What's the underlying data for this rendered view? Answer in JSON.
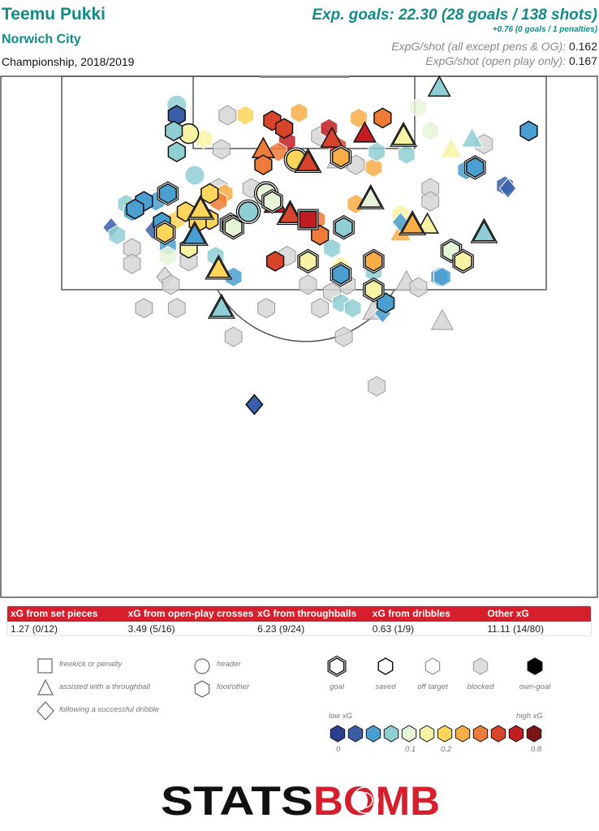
{
  "header": {
    "player": "Teemu Pukki",
    "team": "Norwich City",
    "competition": "Championship, 2018/2019",
    "xg_main": "Exp. goals: 22.30 (28 goals / 138 shots)",
    "xg_sub": "+0.76 (0 goals / 1 penalties)",
    "xg_per_shot_all_label": "ExpG/shot (all except pens & OG):",
    "xg_per_shot_all_value": "0.162",
    "xg_per_shot_open_label": "ExpG/shot (open play only):",
    "xg_per_shot_open_value": "0.167"
  },
  "colors": {
    "accent": "#138a8a",
    "stats_header": "#d61f2c",
    "scale": [
      "#2a3f8f",
      "#3a5fa8",
      "#4a9fd0",
      "#8fcfd3",
      "#e6f5d8",
      "#f7f3a4",
      "#fcd55a",
      "#f8ad46",
      "#ef7b38",
      "#d8442b",
      "#c11d22",
      "#7d1414"
    ]
  },
  "stats": {
    "headers": [
      "xG from set pieces",
      "xG from open-play crosses",
      "xG from throughballs",
      "xG from dribbles",
      "Other xG"
    ],
    "values": [
      "1.27 (0/12)",
      "3.49 (5/16)",
      "6.23 (9/24)",
      "0.63 (1/9)",
      "11.11 (14/80)"
    ]
  },
  "legend": {
    "shapes": [
      {
        "shape": "square",
        "label": "freekick or penalty"
      },
      {
        "shape": "triangle",
        "label": "assisted with a throughball"
      },
      {
        "shape": "diamond",
        "label": "following a successful dribble"
      },
      {
        "shape": "circle",
        "label": "header"
      },
      {
        "shape": "hexagon",
        "label": "foot/other"
      }
    ],
    "outcomes": [
      {
        "key": "goal",
        "label": "goal"
      },
      {
        "key": "saved",
        "label": "saved"
      },
      {
        "key": "off",
        "label": "off target"
      },
      {
        "key": "blocked",
        "label": "blocked"
      },
      {
        "key": "own",
        "label": "own-goal"
      }
    ],
    "low_label": "low xG",
    "high_label": "high xG",
    "ticks": [
      "0",
      "0.1",
      "0.2",
      "0.8"
    ]
  },
  "chart_data": {
    "type": "scatter",
    "description_units": "x = pitch width 0-100 left to right, y = distance from goal line 0-100 (down the pitch)",
    "shots": [
      {
        "x": 73.5,
        "y": 2.2,
        "xg": 0.08,
        "shape": "triangle",
        "outcome": "saved"
      },
      {
        "x": 29.5,
        "y": 5.5,
        "xg": 0.09,
        "shape": "circle",
        "outcome": "off"
      },
      {
        "x": 29.5,
        "y": 7.5,
        "xg": 0.03,
        "shape": "hexagon",
        "outcome": "saved"
      },
      {
        "x": 31.5,
        "y": 11.0,
        "xg": 0.15,
        "shape": "circle",
        "outcome": "saved"
      },
      {
        "x": 38.0,
        "y": 7.5,
        "xg": 0.0,
        "shape": "hexagon",
        "outcome": "blocked"
      },
      {
        "x": 41.0,
        "y": 7.5,
        "xg": 0.2,
        "shape": "hexagon",
        "outcome": "off"
      },
      {
        "x": 45.5,
        "y": 8.5,
        "xg": 0.6,
        "shape": "hexagon",
        "outcome": "saved"
      },
      {
        "x": 50.0,
        "y": 7.0,
        "xg": 0.35,
        "shape": "hexagon",
        "outcome": "off"
      },
      {
        "x": 60.0,
        "y": 8.0,
        "xg": 0.35,
        "shape": "hexagon",
        "outcome": "off"
      },
      {
        "x": 64.0,
        "y": 8.0,
        "xg": 0.45,
        "shape": "hexagon",
        "outcome": "saved"
      },
      {
        "x": 61.0,
        "y": 11.0,
        "xg": 0.7,
        "shape": "triangle",
        "outcome": "saved"
      },
      {
        "x": 70.0,
        "y": 6.0,
        "xg": 0.1,
        "shape": "hexagon",
        "outcome": "off"
      },
      {
        "x": 55.0,
        "y": 10.0,
        "xg": 0.7,
        "shape": "hexagon",
        "outcome": "off"
      },
      {
        "x": 53.5,
        "y": 11.5,
        "xg": 0.0,
        "shape": "hexagon",
        "outcome": "blocked"
      },
      {
        "x": 29.0,
        "y": 10.5,
        "xg": 0.06,
        "shape": "hexagon",
        "outcome": "saved"
      },
      {
        "x": 34.0,
        "y": 12.0,
        "xg": 0.15,
        "shape": "hexagon",
        "outcome": "off"
      },
      {
        "x": 47.5,
        "y": 10.0,
        "xg": 0.55,
        "shape": "hexagon",
        "outcome": "saved"
      },
      {
        "x": 48.0,
        "y": 12.5,
        "xg": 0.65,
        "shape": "hexagon",
        "outcome": "off"
      },
      {
        "x": 55.5,
        "y": 12.0,
        "xg": 0.55,
        "shape": "triangle",
        "outcome": "saved"
      },
      {
        "x": 56.5,
        "y": 13.5,
        "xg": 0.5,
        "shape": "hexagon",
        "outcome": "off"
      },
      {
        "x": 72.0,
        "y": 10.5,
        "xg": 0.1,
        "shape": "hexagon",
        "outcome": "off"
      },
      {
        "x": 67.5,
        "y": 11.5,
        "xg": 0.16,
        "shape": "triangle",
        "outcome": "goal"
      },
      {
        "x": 79.0,
        "y": 12.0,
        "xg": 0.06,
        "shape": "triangle",
        "outcome": "off"
      },
      {
        "x": 75.5,
        "y": 14.0,
        "xg": 0.17,
        "shape": "triangle",
        "outcome": "off"
      },
      {
        "x": 81.0,
        "y": 13.0,
        "xg": 0.0,
        "shape": "hexagon",
        "outcome": "blocked"
      },
      {
        "x": 88.5,
        "y": 10.5,
        "xg": 0.04,
        "shape": "hexagon",
        "outcome": "saved"
      },
      {
        "x": 37.0,
        "y": 14.0,
        "xg": 0.0,
        "shape": "hexagon",
        "outcome": "blocked"
      },
      {
        "x": 29.5,
        "y": 14.5,
        "xg": 0.06,
        "shape": "hexagon",
        "outcome": "saved"
      },
      {
        "x": 44.0,
        "y": 14.0,
        "xg": 0.4,
        "shape": "triangle",
        "outcome": "saved"
      },
      {
        "x": 46.5,
        "y": 14.5,
        "xg": 0.4,
        "shape": "hexagon",
        "outcome": "off"
      },
      {
        "x": 49.5,
        "y": 16.0,
        "xg": 0.2,
        "shape": "circle",
        "outcome": "goal"
      },
      {
        "x": 51.5,
        "y": 16.5,
        "xg": 0.5,
        "shape": "triangle",
        "outcome": "goal"
      },
      {
        "x": 44.0,
        "y": 17.0,
        "xg": 0.45,
        "shape": "hexagon",
        "outcome": "saved"
      },
      {
        "x": 56.5,
        "y": 16.0,
        "xg": 0.0,
        "shape": "triangle",
        "outcome": "blocked"
      },
      {
        "x": 57.0,
        "y": 15.5,
        "xg": 0.35,
        "shape": "hexagon",
        "outcome": "goal"
      },
      {
        "x": 59.5,
        "y": 17.0,
        "xg": 0.0,
        "shape": "hexagon",
        "outcome": "blocked"
      },
      {
        "x": 62.5,
        "y": 17.5,
        "xg": 0.3,
        "shape": "hexagon",
        "outcome": "off"
      },
      {
        "x": 63.0,
        "y": 14.5,
        "xg": 0.08,
        "shape": "hexagon",
        "outcome": "off"
      },
      {
        "x": 68.0,
        "y": 15.0,
        "xg": 0.08,
        "shape": "hexagon",
        "outcome": "off"
      },
      {
        "x": 79.5,
        "y": 17.5,
        "xg": 0.04,
        "shape": "hexagon",
        "outcome": "goal"
      },
      {
        "x": 78.0,
        "y": 18.0,
        "xg": 0.05,
        "shape": "hexagon",
        "outcome": "off"
      },
      {
        "x": 84.5,
        "y": 21.0,
        "xg": 0.03,
        "shape": "hexagon",
        "outcome": "off"
      },
      {
        "x": 32.5,
        "y": 19.0,
        "xg": 0.07,
        "shape": "circle",
        "outcome": "off"
      },
      {
        "x": 36.5,
        "y": 21.5,
        "xg": 0.0,
        "shape": "hexagon",
        "outcome": "blocked"
      },
      {
        "x": 42.0,
        "y": 21.5,
        "xg": 0.0,
        "shape": "hexagon",
        "outcome": "blocked"
      },
      {
        "x": 35.0,
        "y": 22.5,
        "xg": 0.25,
        "shape": "hexagon",
        "outcome": "saved"
      },
      {
        "x": 37.5,
        "y": 22.5,
        "xg": 0.3,
        "shape": "hexagon",
        "outcome": "off"
      },
      {
        "x": 28.0,
        "y": 22.5,
        "xg": 0.05,
        "shape": "hexagon",
        "outcome": "goal"
      },
      {
        "x": 24.0,
        "y": 24.0,
        "xg": 0.05,
        "shape": "hexagon",
        "outcome": "saved"
      },
      {
        "x": 22.5,
        "y": 25.5,
        "xg": 0.05,
        "shape": "hexagon",
        "outcome": "saved"
      },
      {
        "x": 21.0,
        "y": 24.5,
        "xg": 0.06,
        "shape": "hexagon",
        "outcome": "off"
      },
      {
        "x": 26.0,
        "y": 24.0,
        "xg": 0.05,
        "shape": "hexagon",
        "outcome": "off"
      },
      {
        "x": 44.5,
        "y": 22.5,
        "xg": 0.1,
        "shape": "circle",
        "outcome": "goal"
      },
      {
        "x": 45.5,
        "y": 24.0,
        "xg": 0.1,
        "shape": "hexagon",
        "outcome": "goal"
      },
      {
        "x": 46.0,
        "y": 24.5,
        "xg": 0.65,
        "shape": "triangle",
        "outcome": "saved"
      },
      {
        "x": 48.5,
        "y": 26.5,
        "xg": 0.6,
        "shape": "triangle",
        "outcome": "goal"
      },
      {
        "x": 51.5,
        "y": 27.5,
        "xg": 0.75,
        "shape": "square",
        "outcome": "goal"
      },
      {
        "x": 53.0,
        "y": 27.5,
        "xg": 0.4,
        "shape": "hexagon",
        "outcome": "off"
      },
      {
        "x": 59.5,
        "y": 24.5,
        "xg": 0.35,
        "shape": "hexagon",
        "outcome": "off"
      },
      {
        "x": 62.0,
        "y": 23.5,
        "xg": 0.1,
        "shape": "triangle",
        "outcome": "goal"
      },
      {
        "x": 72.0,
        "y": 21.5,
        "xg": 0.0,
        "shape": "hexagon",
        "outcome": "blocked"
      },
      {
        "x": 72.0,
        "y": 24.0,
        "xg": 0.0,
        "shape": "hexagon",
        "outcome": "blocked"
      },
      {
        "x": 67.0,
        "y": 26.5,
        "xg": 0.16,
        "shape": "hexagon",
        "outcome": "off"
      },
      {
        "x": 69.0,
        "y": 28.5,
        "xg": 0.3,
        "shape": "triangle",
        "outcome": "goal"
      },
      {
        "x": 71.5,
        "y": 28.5,
        "xg": 0.15,
        "shape": "triangle",
        "outcome": "saved"
      },
      {
        "x": 67.0,
        "y": 30.0,
        "xg": 0.3,
        "shape": "triangle",
        "outcome": "off"
      },
      {
        "x": 67.0,
        "y": 28.0,
        "xg": 0.04,
        "shape": "diamond",
        "outcome": "off"
      },
      {
        "x": 85.0,
        "y": 21.5,
        "xg": 0.02,
        "shape": "diamond",
        "outcome": "off"
      },
      {
        "x": 81.0,
        "y": 30.0,
        "xg": 0.08,
        "shape": "triangle",
        "outcome": "goal"
      },
      {
        "x": 53.5,
        "y": 30.5,
        "xg": 0.45,
        "shape": "hexagon",
        "outcome": "saved"
      },
      {
        "x": 57.5,
        "y": 29.0,
        "xg": 0.08,
        "shape": "hexagon",
        "outcome": "goal"
      },
      {
        "x": 38.5,
        "y": 28.5,
        "xg": 0.12,
        "shape": "hexagon",
        "outcome": "goal"
      },
      {
        "x": 33.5,
        "y": 25.5,
        "xg": 0.25,
        "shape": "triangle",
        "outcome": "goal"
      },
      {
        "x": 35.0,
        "y": 27.5,
        "xg": 0.25,
        "shape": "hexagon",
        "outcome": "saved"
      },
      {
        "x": 31.0,
        "y": 26.0,
        "xg": 0.25,
        "shape": "hexagon",
        "outcome": "saved"
      },
      {
        "x": 33.0,
        "y": 28.0,
        "xg": 0.2,
        "shape": "hexagon",
        "outcome": "saved"
      },
      {
        "x": 29.5,
        "y": 27.5,
        "xg": 0.2,
        "shape": "hexagon",
        "outcome": "off"
      },
      {
        "x": 27.0,
        "y": 28.0,
        "xg": 0.05,
        "shape": "hexagon",
        "outcome": "saved"
      },
      {
        "x": 25.5,
        "y": 29.5,
        "xg": 0.02,
        "shape": "diamond",
        "outcome": "off"
      },
      {
        "x": 18.5,
        "y": 29.0,
        "xg": 0.02,
        "shape": "diamond",
        "outcome": "off"
      },
      {
        "x": 22.0,
        "y": 26.0,
        "xg": 0.04,
        "shape": "hexagon",
        "outcome": "off"
      },
      {
        "x": 22.0,
        "y": 33.0,
        "xg": 0.0,
        "shape": "hexagon",
        "outcome": "blocked"
      },
      {
        "x": 28.0,
        "y": 32.5,
        "xg": 0.05,
        "shape": "hexagon",
        "outcome": "off"
      },
      {
        "x": 28.0,
        "y": 34.5,
        "xg": 0.12,
        "shape": "hexagon",
        "outcome": "off"
      },
      {
        "x": 31.5,
        "y": 35.5,
        "xg": 0.0,
        "shape": "hexagon",
        "outcome": "blocked"
      },
      {
        "x": 36.0,
        "y": 34.5,
        "xg": 0.07,
        "shape": "hexagon",
        "outcome": "off"
      },
      {
        "x": 39.0,
        "y": 38.5,
        "xg": 0.05,
        "shape": "hexagon",
        "outcome": "off"
      },
      {
        "x": 36.5,
        "y": 37.0,
        "xg": 0.2,
        "shape": "triangle",
        "outcome": "goal"
      },
      {
        "x": 46.0,
        "y": 35.5,
        "xg": 0.5,
        "shape": "hexagon",
        "outcome": "saved"
      },
      {
        "x": 51.5,
        "y": 35.5,
        "xg": 0.15,
        "shape": "hexagon",
        "outcome": "goal"
      },
      {
        "x": 57.0,
        "y": 38.0,
        "xg": 0.05,
        "shape": "hexagon",
        "outcome": "goal"
      },
      {
        "x": 57.0,
        "y": 36.5,
        "xg": 0.15,
        "shape": "hexagon",
        "outcome": "off"
      },
      {
        "x": 58.0,
        "y": 40.0,
        "xg": 0.0,
        "shape": "hexagon",
        "outcome": "blocked"
      },
      {
        "x": 62.5,
        "y": 35.5,
        "xg": 0.3,
        "shape": "hexagon",
        "outcome": "goal"
      },
      {
        "x": 62.5,
        "y": 37.5,
        "xg": 0.08,
        "shape": "hexagon",
        "outcome": "off"
      },
      {
        "x": 62.5,
        "y": 41.0,
        "xg": 0.18,
        "shape": "hexagon",
        "outcome": "goal"
      },
      {
        "x": 64.5,
        "y": 43.5,
        "xg": 0.04,
        "shape": "hexagon",
        "outcome": "saved"
      },
      {
        "x": 68.0,
        "y": 39.5,
        "xg": 0.0,
        "shape": "triangle",
        "outcome": "blocked"
      },
      {
        "x": 70.0,
        "y": 40.5,
        "xg": 0.0,
        "shape": "hexagon",
        "outcome": "blocked"
      },
      {
        "x": 73.5,
        "y": 38.5,
        "xg": 0.04,
        "shape": "hexagon",
        "outcome": "off"
      },
      {
        "x": 75.5,
        "y": 33.5,
        "xg": 0.12,
        "shape": "hexagon",
        "outcome": "goal"
      },
      {
        "x": 77.5,
        "y": 35.5,
        "xg": 0.16,
        "shape": "hexagon",
        "outcome": "goal"
      },
      {
        "x": 76.0,
        "y": 33.0,
        "xg": 0.06,
        "shape": "hexagon",
        "outcome": "off"
      },
      {
        "x": 74.0,
        "y": 38.5,
        "xg": 0.04,
        "shape": "hexagon",
        "outcome": "off"
      },
      {
        "x": 22.0,
        "y": 36.0,
        "xg": 0.0,
        "shape": "hexagon",
        "outcome": "blocked"
      },
      {
        "x": 27.5,
        "y": 38.5,
        "xg": 0.0,
        "shape": "diamond",
        "outcome": "blocked"
      },
      {
        "x": 28.5,
        "y": 40.0,
        "xg": 0.0,
        "shape": "hexagon",
        "outcome": "blocked"
      },
      {
        "x": 51.5,
        "y": 40.0,
        "xg": 0.0,
        "shape": "hexagon",
        "outcome": "blocked"
      },
      {
        "x": 55.5,
        "y": 41.5,
        "xg": 0.0,
        "shape": "hexagon",
        "outcome": "blocked"
      },
      {
        "x": 57.0,
        "y": 43.5,
        "xg": 0.08,
        "shape": "hexagon",
        "outcome": "off"
      },
      {
        "x": 59.0,
        "y": 44.5,
        "xg": 0.06,
        "shape": "hexagon",
        "outcome": "off"
      },
      {
        "x": 24.0,
        "y": 44.5,
        "xg": 0.0,
        "shape": "hexagon",
        "outcome": "blocked"
      },
      {
        "x": 29.5,
        "y": 44.5,
        "xg": 0.0,
        "shape": "hexagon",
        "outcome": "blocked"
      },
      {
        "x": 37.0,
        "y": 44.5,
        "xg": 0.08,
        "shape": "triangle",
        "outcome": "goal"
      },
      {
        "x": 44.5,
        "y": 44.5,
        "xg": 0.0,
        "shape": "hexagon",
        "outcome": "blocked"
      },
      {
        "x": 53.5,
        "y": 44.5,
        "xg": 0.0,
        "shape": "hexagon",
        "outcome": "blocked"
      },
      {
        "x": 62.5,
        "y": 45.0,
        "xg": 0.0,
        "shape": "triangle",
        "outcome": "blocked"
      },
      {
        "x": 64.0,
        "y": 45.5,
        "xg": 0.04,
        "shape": "diamond",
        "outcome": "off"
      },
      {
        "x": 74.0,
        "y": 47.0,
        "xg": 0.0,
        "shape": "triangle",
        "outcome": "blocked"
      },
      {
        "x": 39.0,
        "y": 50.0,
        "xg": 0.0,
        "shape": "hexagon",
        "outcome": "blocked"
      },
      {
        "x": 57.5,
        "y": 50.0,
        "xg": 0.0,
        "shape": "hexagon",
        "outcome": "blocked"
      },
      {
        "x": 63.0,
        "y": 59.5,
        "xg": 0.0,
        "shape": "hexagon",
        "outcome": "blocked"
      },
      {
        "x": 42.5,
        "y": 63.0,
        "xg": 0.02,
        "shape": "diamond",
        "outcome": "saved"
      },
      {
        "x": 19.5,
        "y": 30.5,
        "xg": 0.06,
        "shape": "hexagon",
        "outcome": "off"
      },
      {
        "x": 27.5,
        "y": 30.0,
        "xg": 0.2,
        "shape": "hexagon",
        "outcome": "goal"
      },
      {
        "x": 32.5,
        "y": 30.5,
        "xg": 0.05,
        "shape": "triangle",
        "outcome": "goal"
      },
      {
        "x": 31.5,
        "y": 33.0,
        "xg": 0.17,
        "shape": "hexagon",
        "outcome": "saved"
      },
      {
        "x": 39.0,
        "y": 29.0,
        "xg": 0.1,
        "shape": "hexagon",
        "outcome": "goal"
      },
      {
        "x": 41.5,
        "y": 26.0,
        "xg": 0.09,
        "shape": "circle",
        "outcome": "goal"
      },
      {
        "x": 48.0,
        "y": 34.5,
        "xg": 0.0,
        "shape": "hexagon",
        "outcome": "blocked"
      },
      {
        "x": 36.5,
        "y": 24.0,
        "xg": 0.4,
        "shape": "hexagon",
        "outcome": "off"
      },
      {
        "x": 55.5,
        "y": 33.0,
        "xg": 0.08,
        "shape": "hexagon",
        "outcome": "off"
      }
    ]
  }
}
